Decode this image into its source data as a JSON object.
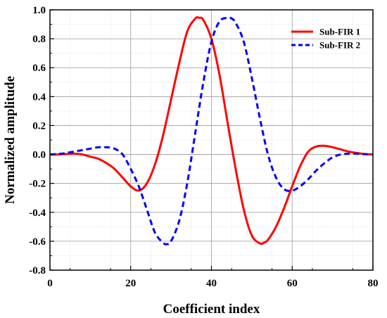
{
  "chart_data": {
    "type": "line",
    "title": "",
    "xlabel": "Coefficient index",
    "ylabel": "Normalized amplitude",
    "xlim": [
      0,
      80
    ],
    "ylim": [
      -0.8,
      1.0
    ],
    "x_ticks": [
      0,
      20,
      40,
      60,
      80
    ],
    "y_ticks": [
      -0.8,
      -0.6,
      -0.4,
      -0.2,
      0.0,
      0.2,
      0.4,
      0.6,
      0.8,
      1.0
    ],
    "grid": true,
    "legend_position": "top-right",
    "series": [
      {
        "name": "Sub-FIR 1",
        "color": "#ff0000",
        "style": "solid",
        "x": [
          0,
          2,
          4,
          6,
          8,
          10,
          12,
          14,
          16,
          18,
          20,
          22,
          24,
          26,
          28,
          30,
          32,
          34,
          36,
          37,
          38,
          40,
          42,
          44,
          46,
          48,
          50,
          52,
          53,
          54,
          56,
          58,
          60,
          62,
          64,
          66,
          68,
          70,
          72,
          74,
          76,
          78,
          80
        ],
        "y": [
          0.0,
          0.0,
          0.003,
          0.005,
          0.0,
          -0.015,
          -0.03,
          -0.06,
          -0.1,
          -0.16,
          -0.22,
          -0.25,
          -0.2,
          -0.07,
          0.13,
          0.38,
          0.63,
          0.85,
          0.94,
          0.945,
          0.93,
          0.8,
          0.55,
          0.22,
          -0.1,
          -0.38,
          -0.56,
          -0.615,
          -0.61,
          -0.59,
          -0.5,
          -0.37,
          -0.22,
          -0.08,
          0.02,
          0.055,
          0.06,
          0.05,
          0.035,
          0.02,
          0.01,
          0.003,
          0.0
        ]
      },
      {
        "name": "Sub-FIR 2",
        "color": "#0000ff",
        "style": "dashed",
        "x": [
          0,
          2,
          4,
          6,
          8,
          10,
          12,
          14,
          16,
          18,
          20,
          22,
          24,
          26,
          28,
          29,
          30,
          32,
          34,
          36,
          38,
          40,
          42,
          44,
          45,
          46,
          48,
          50,
          52,
          54,
          56,
          58,
          60,
          62,
          64,
          66,
          68,
          70,
          72,
          74,
          76,
          78,
          80
        ],
        "y": [
          0.0,
          0.003,
          0.01,
          0.02,
          0.03,
          0.04,
          0.05,
          0.05,
          0.04,
          0.0,
          -0.1,
          -0.22,
          -0.38,
          -0.54,
          -0.61,
          -0.62,
          -0.6,
          -0.46,
          -0.2,
          0.15,
          0.5,
          0.78,
          0.92,
          0.945,
          0.94,
          0.91,
          0.78,
          0.53,
          0.25,
          0.0,
          -0.16,
          -0.24,
          -0.25,
          -0.22,
          -0.17,
          -0.11,
          -0.06,
          -0.02,
          0.0,
          0.005,
          0.005,
          0.002,
          0.0
        ]
      }
    ]
  }
}
